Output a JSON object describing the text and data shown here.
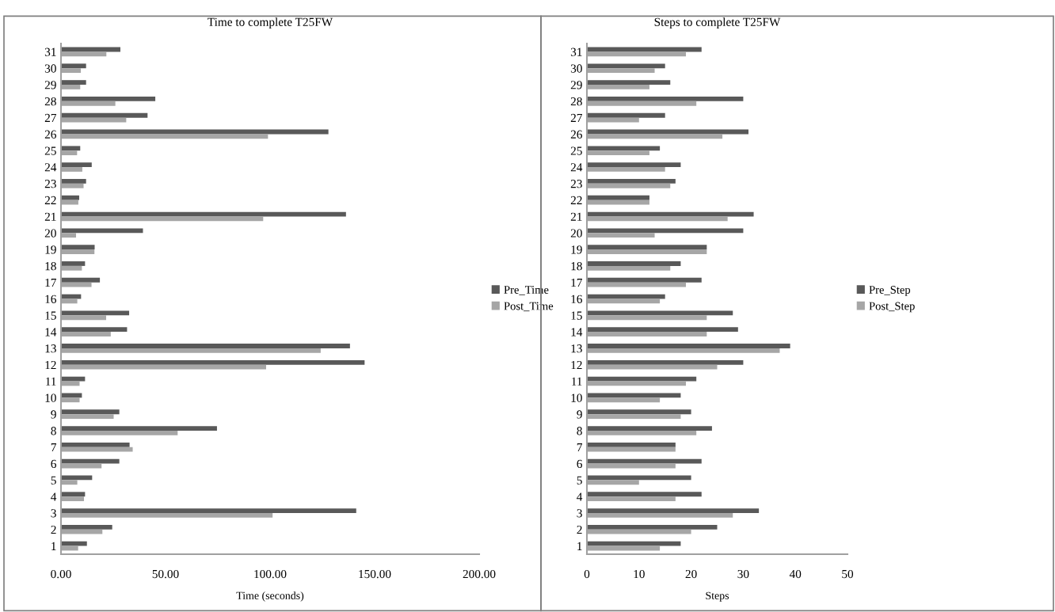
{
  "chart_data": [
    {
      "type": "bar",
      "orientation": "horizontal",
      "title": "Time to complete T25FW",
      "xlabel": "Time (seconds)",
      "categories": [
        "31",
        "30",
        "29",
        "28",
        "27",
        "26",
        "25",
        "24",
        "23",
        "22",
        "21",
        "20",
        "19",
        "18",
        "17",
        "16",
        "15",
        "14",
        "13",
        "12",
        "11",
        "10",
        "9",
        "8",
        "7",
        "6",
        "5",
        "4",
        "3",
        "2",
        "1"
      ],
      "series": [
        {
          "name": "Pre_Time",
          "color": "#595959",
          "values": [
            28.4,
            12,
            12,
            45.1,
            41.4,
            127.9,
            9.2,
            14.7,
            12,
            8.7,
            136.3,
            39.2,
            16.1,
            11.5,
            18.6,
            9.6,
            32.6,
            31.6,
            138.2,
            145.2,
            11.5,
            10,
            27.9,
            74.6,
            32.8,
            27.9,
            14.9,
            11.5,
            141.2,
            24.5,
            12.4
          ]
        },
        {
          "name": "Post_Time",
          "color": "#a6a6a6",
          "values": [
            21.7,
            9.5,
            9.2,
            26,
            31.2,
            99,
            7.7,
            10.2,
            10.8,
            8.3,
            96.7,
            7.2,
            16,
            10,
            14.6,
            7.8,
            21.6,
            23.8,
            124.2,
            98.1,
            8.9,
            8.9,
            25.2,
            55.8,
            34.3,
            19.4,
            7.8,
            11,
            101.2,
            19.8,
            8.2
          ]
        }
      ],
      "xlim": [
        0,
        200
      ],
      "xticks": [
        {
          "value": 0,
          "label": "0.00"
        },
        {
          "value": 50,
          "label": "50.00"
        },
        {
          "value": 100,
          "label": "100.00"
        },
        {
          "value": 150,
          "label": "150.00"
        },
        {
          "value": 200,
          "label": "200.00"
        }
      ],
      "legend": "right",
      "grid": false
    },
    {
      "type": "bar",
      "orientation": "horizontal",
      "title": "Steps to complete T25FW",
      "xlabel": "Steps",
      "categories": [
        "31",
        "30",
        "29",
        "28",
        "27",
        "26",
        "25",
        "24",
        "23",
        "22",
        "21",
        "20",
        "19",
        "18",
        "17",
        "16",
        "15",
        "14",
        "13",
        "12",
        "11",
        "10",
        "9",
        "8",
        "7",
        "6",
        "5",
        "4",
        "3",
        "2",
        "1"
      ],
      "series": [
        {
          "name": "Pre_Step",
          "color": "#595959",
          "values": [
            22,
            15,
            16,
            30,
            15,
            31,
            14,
            18,
            17,
            12,
            32,
            30,
            23,
            18,
            22,
            15,
            28,
            29,
            39,
            30,
            21,
            18,
            20,
            24,
            17,
            22,
            20,
            22,
            33,
            25,
            18
          ]
        },
        {
          "name": "Post_Step",
          "color": "#a6a6a6",
          "values": [
            19,
            13,
            12,
            21,
            10,
            26,
            12,
            15,
            16,
            12,
            27,
            13,
            23,
            16,
            19,
            14,
            23,
            23,
            37,
            25,
            19,
            14,
            18,
            21,
            17,
            17,
            10,
            17,
            28,
            20,
            14
          ]
        }
      ],
      "xlim": [
        0,
        50
      ],
      "xticks": [
        0,
        10,
        20,
        30,
        40,
        50
      ],
      "legend": "right",
      "grid": false
    }
  ]
}
